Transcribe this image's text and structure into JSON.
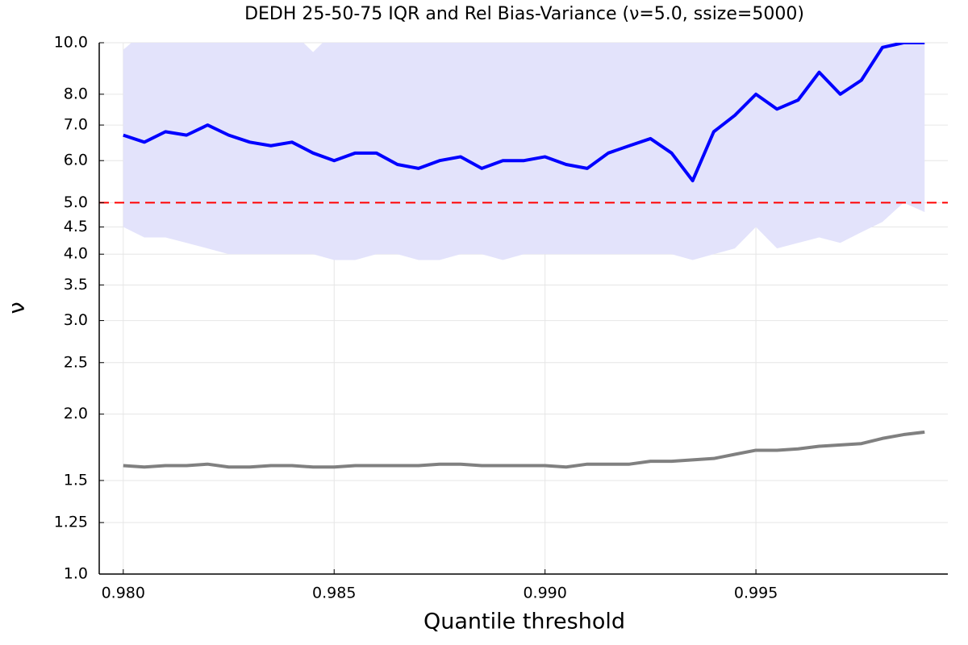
{
  "chart_data": {
    "type": "line",
    "title": "DEDH 25-50-75 IQR and Rel Bias-Variance (ν=5.0, ssize=5000)",
    "x_label": "Quantile threshold",
    "y_label": "ν",
    "log_y": true,
    "grid": true,
    "xlim": [
      0.97943,
      0.99955
    ],
    "ylim": [
      1,
      10
    ],
    "xticks": [
      {
        "value": 0.98,
        "label": "0.980"
      },
      {
        "value": 0.985,
        "label": "0.985"
      },
      {
        "value": 0.99,
        "label": "0.990"
      },
      {
        "value": 0.995,
        "label": "0.995"
      }
    ],
    "yticks": [
      {
        "value": 1,
        "label": "1.0"
      },
      1.25,
      1.5,
      {
        "value": 2,
        "label": "2.0"
      },
      2.5,
      {
        "value": 3,
        "label": "3.0"
      },
      3.5,
      {
        "value": 4,
        "label": "4.0"
      },
      4.5,
      {
        "value": 5,
        "label": "5.0"
      },
      {
        "value": 6,
        "label": "6.0"
      },
      {
        "value": 7,
        "label": "7.0"
      },
      {
        "value": 8,
        "label": "8.0"
      },
      {
        "value": 10,
        "label": "10.0"
      }
    ],
    "x": [
      0.98,
      0.9805,
      0.981,
      0.9815,
      0.982,
      0.9825,
      0.983,
      0.9835,
      0.984,
      0.9845,
      0.985,
      0.9855,
      0.986,
      0.9865,
      0.987,
      0.9875,
      0.988,
      0.9885,
      0.989,
      0.9895,
      0.99,
      0.9905,
      0.991,
      0.9915,
      0.992,
      0.9925,
      0.993,
      0.9935,
      0.994,
      0.9945,
      0.995,
      0.9955,
      0.996,
      0.9965,
      0.997,
      0.9975,
      0.998,
      0.9985,
      0.999
    ],
    "band": {
      "color": "#e3e3fb",
      "upper": [
        9.7,
        10.5,
        10.5,
        10.5,
        10.5,
        10.5,
        10.5,
        10.5,
        10.5,
        9.6,
        10.5,
        10.5,
        10.5,
        10.5,
        10.5,
        10.5,
        10.5,
        10.5,
        10.5,
        10.5,
        10.5,
        10.5,
        10.5,
        10.5,
        10.5,
        10.5,
        10.5,
        10.5,
        10.5,
        10.5,
        10.5,
        10.5,
        10.5,
        10.5,
        10.5,
        10.5,
        10.5,
        10.5,
        10.5
      ],
      "lower": [
        4.5,
        4.3,
        4.3,
        4.2,
        4.1,
        4.0,
        4.0,
        4.0,
        4.0,
        4.0,
        3.9,
        3.9,
        4.0,
        4.0,
        3.9,
        3.9,
        4.0,
        4.0,
        3.9,
        4.0,
        4.0,
        4.0,
        4.0,
        4.0,
        4.0,
        4.0,
        4.0,
        3.9,
        4.0,
        4.1,
        4.5,
        4.1,
        4.2,
        4.3,
        4.2,
        4.4,
        4.6,
        5.0,
        4.8
      ]
    },
    "hline": {
      "value": 5,
      "color": "#ff0000"
    },
    "series": [
      {
        "color": "#0000ff",
        "values": [
          6.7,
          6.5,
          6.8,
          6.7,
          7.0,
          6.7,
          6.5,
          6.4,
          6.5,
          6.2,
          6.0,
          6.2,
          6.2,
          5.9,
          5.8,
          6.0,
          6.1,
          5.8,
          6.0,
          6.0,
          6.1,
          5.9,
          5.8,
          6.2,
          6.4,
          6.6,
          6.2,
          5.5,
          6.8,
          7.3,
          8.0,
          7.5,
          7.8,
          8.8,
          8.0,
          8.5,
          9.8,
          10,
          10
        ]
      },
      {
        "color": "#808080",
        "values": [
          1.6,
          1.59,
          1.6,
          1.6,
          1.61,
          1.59,
          1.59,
          1.6,
          1.6,
          1.59,
          1.59,
          1.6,
          1.6,
          1.6,
          1.6,
          1.61,
          1.61,
          1.6,
          1.6,
          1.6,
          1.6,
          1.59,
          1.61,
          1.61,
          1.61,
          1.63,
          1.63,
          1.64,
          1.65,
          1.68,
          1.71,
          1.71,
          1.72,
          1.74,
          1.75,
          1.76,
          1.8,
          1.83,
          1.85
        ]
      }
    ]
  }
}
